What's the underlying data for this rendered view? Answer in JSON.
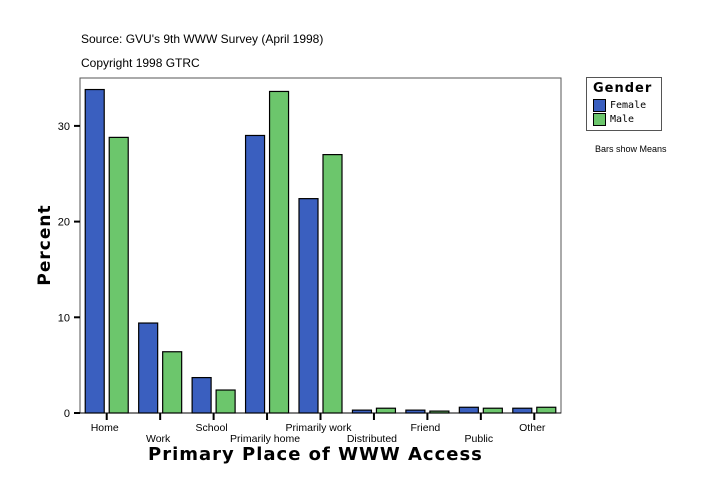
{
  "header": {
    "source": "Source: GVU's 9th WWW Survey (April 1998)",
    "copyright": "Copyright 1998 GTRC"
  },
  "legend": {
    "title": "Gender",
    "items": [
      {
        "label": "Female",
        "color": "#3a5fbf"
      },
      {
        "label": "Male",
        "color": "#6cc66c"
      }
    ],
    "note": "Bars show Means"
  },
  "chart_data": {
    "type": "bar",
    "title": "",
    "xlabel": "Primary Place of WWW Access",
    "ylabel": "Percent",
    "ylim": [
      0,
      35
    ],
    "yticks": [
      0,
      10,
      20,
      30
    ],
    "grid": false,
    "legend_position": "right",
    "categories": [
      "Home",
      "Work",
      "School",
      "Primarily home",
      "Primarily work",
      "Distributed",
      "Friend",
      "Public",
      "Other"
    ],
    "series": [
      {
        "name": "Female",
        "color": "#3a5fbf",
        "values": [
          33.8,
          9.4,
          3.7,
          29.0,
          22.4,
          0.3,
          0.3,
          0.6,
          0.5
        ]
      },
      {
        "name": "Male",
        "color": "#6cc66c",
        "values": [
          28.8,
          6.4,
          2.4,
          33.6,
          27.0,
          0.5,
          0.2,
          0.5,
          0.6
        ]
      }
    ]
  }
}
